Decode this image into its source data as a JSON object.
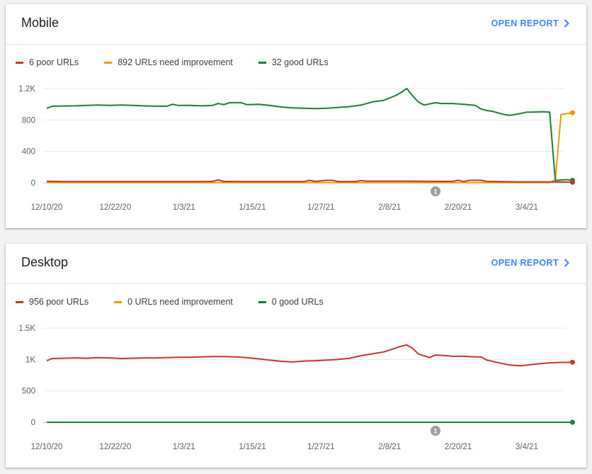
{
  "open_report_label": "OPEN REPORT",
  "colors": {
    "poor": "#c5372c",
    "improve": "#f29900",
    "good": "#188038",
    "link": "#4285f4"
  },
  "annotation_label": "1",
  "chart_data": [
    {
      "type": "line",
      "title": "Mobile",
      "legend_placement": "top-left",
      "x_tick_labels": [
        "12/10/20",
        "12/22/20",
        "1/3/21",
        "1/15/21",
        "1/27/21",
        "2/8/21",
        "2/20/21",
        "3/4/21"
      ],
      "y_tick_labels": [
        "0",
        "400",
        "800",
        "1.2K"
      ],
      "y_ticks": [
        0,
        400,
        800,
        1200
      ],
      "ylim": [
        0,
        1200
      ],
      "grid": true,
      "series": [
        {
          "key": "poor",
          "name": "6 poor URLs",
          "color": "#c5372c",
          "x": [
            "12/10/20",
            "12/13/20",
            "12/16/20",
            "12/19/20",
            "12/22/20",
            "12/25/20",
            "12/28/20",
            "12/31/20",
            "1/3/21",
            "1/6/21",
            "1/8/21",
            "1/9/21",
            "1/10/21",
            "1/13/21",
            "1/16/21",
            "1/19/21",
            "1/22/21",
            "1/24/21",
            "1/25/21",
            "1/26/21",
            "1/28/21",
            "1/29/21",
            "1/30/21",
            "2/2/21",
            "2/3/21",
            "2/4/21",
            "2/7/21",
            "2/10/21",
            "2/13/21",
            "2/16/21",
            "2/19/21",
            "2/20/21",
            "2/21/21",
            "2/22/21",
            "2/24/21",
            "2/25/21",
            "2/28/21",
            "3/3/21",
            "3/6/21",
            "3/9/21",
            "3/12/21"
          ],
          "values": [
            20,
            16,
            16,
            15,
            16,
            16,
            15,
            15,
            16,
            16,
            18,
            36,
            18,
            16,
            16,
            15,
            16,
            16,
            32,
            18,
            32,
            32,
            16,
            16,
            28,
            22,
            22,
            22,
            20,
            18,
            18,
            32,
            16,
            32,
            32,
            18,
            14,
            12,
            12,
            12,
            6
          ]
        },
        {
          "key": "improve",
          "name": "892 URLs need improvement",
          "color": "#f29900",
          "x": [
            "12/10/20",
            "12/15/20",
            "12/20/20",
            "12/25/20",
            "12/30/20",
            "1/4/21",
            "1/9/21",
            "1/14/21",
            "1/19/21",
            "1/24/21",
            "1/29/21",
            "2/3/21",
            "2/8/21",
            "2/13/21",
            "2/18/21",
            "2/23/21",
            "2/28/21",
            "3/5/21",
            "3/8/21",
            "3/9/21",
            "3/10/21",
            "3/12/21"
          ],
          "values": [
            4,
            3,
            3,
            3,
            3,
            3,
            3,
            3,
            3,
            3,
            3,
            3,
            3,
            3,
            3,
            3,
            3,
            3,
            3,
            40,
            870,
            892
          ]
        },
        {
          "key": "good",
          "name": "32 good URLs",
          "color": "#188038",
          "x": [
            "12/10/20",
            "12/11/20",
            "12/13/20",
            "12/15/20",
            "12/17/20",
            "12/19/20",
            "12/21/20",
            "12/23/20",
            "12/25/20",
            "12/27/20",
            "12/29/20",
            "12/31/20",
            "1/1/21",
            "1/2/21",
            "1/4/21",
            "1/6/21",
            "1/8/21",
            "1/9/21",
            "1/10/21",
            "1/11/21",
            "1/13/21",
            "1/14/21",
            "1/16/21",
            "1/18/21",
            "1/20/21",
            "1/22/21",
            "1/24/21",
            "1/26/21",
            "1/28/21",
            "1/30/21",
            "2/1/21",
            "2/3/21",
            "2/5/21",
            "2/7/21",
            "2/9/21",
            "2/10/21",
            "2/11/21",
            "2/12/21",
            "2/13/21",
            "2/14/21",
            "2/16/21",
            "2/17/21",
            "2/19/21",
            "2/21/21",
            "2/23/21",
            "2/24/21",
            "2/25/21",
            "2/26/21",
            "2/28/21",
            "3/1/21",
            "3/2/21",
            "3/4/21",
            "3/5/21",
            "3/7/21",
            "3/8/21",
            "3/9/21",
            "3/10/21",
            "3/11/21",
            "3/12/21"
          ],
          "values": [
            950,
            975,
            978,
            980,
            985,
            990,
            985,
            990,
            985,
            980,
            975,
            975,
            1000,
            985,
            985,
            980,
            985,
            1010,
            995,
            1020,
            1020,
            995,
            1000,
            985,
            965,
            955,
            950,
            945,
            950,
            960,
            970,
            990,
            1030,
            1050,
            1110,
            1150,
            1200,
            1110,
            1030,
            990,
            1020,
            1010,
            1010,
            1000,
            985,
            940,
            920,
            910,
            870,
            860,
            870,
            900,
            900,
            905,
            900,
            30,
            35,
            40,
            32
          ]
        }
      ]
    },
    {
      "type": "line",
      "title": "Desktop",
      "legend_placement": "top-left",
      "x_tick_labels": [
        "12/10/20",
        "12/22/20",
        "1/3/21",
        "1/15/21",
        "1/27/21",
        "2/8/21",
        "2/20/21",
        "3/4/21"
      ],
      "y_tick_labels": [
        "0",
        "500",
        "1K",
        "1.5K"
      ],
      "y_ticks": [
        0,
        500,
        1000,
        1500
      ],
      "ylim": [
        0,
        1500
      ],
      "grid": true,
      "series": [
        {
          "key": "poor",
          "name": "956 poor URLs",
          "color": "#c5372c",
          "x": [
            "12/10/20",
            "12/11/20",
            "12/13/20",
            "12/15/20",
            "12/17/20",
            "12/19/20",
            "12/21/20",
            "12/23/20",
            "12/25/20",
            "12/27/20",
            "12/29/20",
            "12/31/20",
            "1/2/21",
            "1/4/21",
            "1/6/21",
            "1/8/21",
            "1/10/21",
            "1/12/21",
            "1/14/21",
            "1/16/21",
            "1/18/21",
            "1/20/21",
            "1/22/21",
            "1/24/21",
            "1/26/21",
            "1/28/21",
            "1/30/21",
            "2/1/21",
            "2/3/21",
            "2/5/21",
            "2/7/21",
            "2/9/21",
            "2/10/21",
            "2/11/21",
            "2/12/21",
            "2/13/21",
            "2/15/21",
            "2/16/21",
            "2/18/21",
            "2/19/21",
            "2/21/21",
            "2/23/21",
            "2/24/21",
            "2/25/21",
            "2/27/21",
            "2/28/21",
            "3/1/21",
            "3/3/21",
            "3/5/21",
            "3/7/21",
            "3/9/21",
            "3/12/21"
          ],
          "values": [
            980,
            1015,
            1020,
            1025,
            1020,
            1030,
            1025,
            1015,
            1020,
            1025,
            1025,
            1030,
            1035,
            1035,
            1040,
            1045,
            1045,
            1040,
            1030,
            1010,
            990,
            970,
            960,
            975,
            980,
            990,
            1000,
            1020,
            1060,
            1090,
            1120,
            1180,
            1210,
            1230,
            1180,
            1090,
            1030,
            1070,
            1060,
            1050,
            1050,
            1040,
            1040,
            990,
            950,
            930,
            910,
            900,
            920,
            940,
            950,
            956
          ]
        },
        {
          "key": "improve",
          "name": "0 URLs need improvement",
          "color": "#f29900",
          "x": [
            "12/10/20",
            "3/12/21"
          ],
          "values": [
            0,
            0
          ]
        },
        {
          "key": "good",
          "name": "0 good URLs",
          "color": "#188038",
          "x": [
            "12/10/20",
            "3/12/21"
          ],
          "values": [
            0,
            0
          ]
        }
      ]
    }
  ]
}
